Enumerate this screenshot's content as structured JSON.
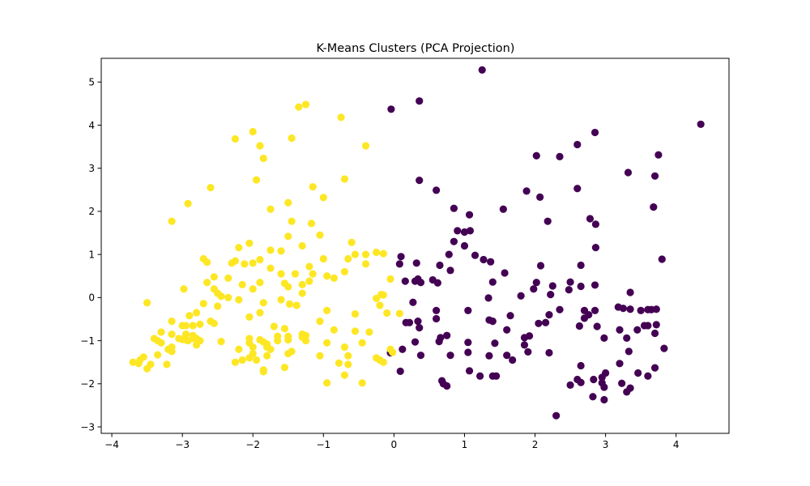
{
  "chart_data": {
    "type": "scatter",
    "title": "K-Means Clusters (PCA Projection)",
    "xlabel": "",
    "ylabel": "",
    "xlim": [
      -4.15,
      4.75
    ],
    "ylim": [
      -3.15,
      5.55
    ],
    "xticks": [
      -4,
      -3,
      -2,
      -1,
      0,
      1,
      2,
      3,
      4
    ],
    "yticks": [
      -3,
      -2,
      -1,
      0,
      1,
      2,
      3,
      4,
      5
    ],
    "grid": false,
    "legend": "none",
    "series": [
      {
        "color": "#440154",
        "points": [
          [
            1.25,
            5.28
          ],
          [
            4.35,
            4.02
          ],
          [
            0.36,
            4.56
          ],
          [
            -0.04,
            4.37
          ],
          [
            2.85,
            3.83
          ],
          [
            2.6,
            3.55
          ],
          [
            3.75,
            3.31
          ],
          [
            2.02,
            3.29
          ],
          [
            2.35,
            3.27
          ],
          [
            3.32,
            2.9
          ],
          [
            3.7,
            2.82
          ],
          [
            0.36,
            2.72
          ],
          [
            2.6,
            2.53
          ],
          [
            0.6,
            2.49
          ],
          [
            1.88,
            2.47
          ],
          [
            2.07,
            2.33
          ],
          [
            3.68,
            2.1
          ],
          [
            0.85,
            2.07
          ],
          [
            1.55,
            2.05
          ],
          [
            1.07,
            1.92
          ],
          [
            2.78,
            1.83
          ],
          [
            2.18,
            1.77
          ],
          [
            2.86,
            1.7
          ],
          [
            0.9,
            1.55
          ],
          [
            1.08,
            1.55
          ],
          [
            1.0,
            1.52
          ],
          [
            0.85,
            1.3
          ],
          [
            1.0,
            1.2
          ],
          [
            2.86,
            1.16
          ],
          [
            0.78,
            1.0
          ],
          [
            1.15,
            0.98
          ],
          [
            0.1,
            0.95
          ],
          [
            3.8,
            0.89
          ],
          [
            1.27,
            0.88
          ],
          [
            1.37,
            0.83
          ],
          [
            0.32,
            0.8
          ],
          [
            0.08,
            0.78
          ],
          [
            2.08,
            0.74
          ],
          [
            2.65,
            0.75
          ],
          [
            0.65,
            0.75
          ],
          [
            0.8,
            0.63
          ],
          [
            1.57,
            0.57
          ],
          [
            0.34,
            0.43
          ],
          [
            0.55,
            0.41
          ],
          [
            0.3,
            0.38
          ],
          [
            0.16,
            0.38
          ],
          [
            1.4,
            0.36
          ],
          [
            0.38,
            0.35
          ],
          [
            2.02,
            0.35
          ],
          [
            0.62,
            0.34
          ],
          [
            2.5,
            0.36
          ],
          [
            2.85,
            0.29
          ],
          [
            2.65,
            0.26
          ],
          [
            2.25,
            0.27
          ],
          [
            1.98,
            0.2
          ],
          [
            2.48,
            0.18
          ],
          [
            3.35,
            0.12
          ],
          [
            1.05,
            -0.3
          ],
          [
            0.6,
            -0.3
          ],
          [
            1.34,
            -0.01
          ],
          [
            2.22,
            0.07
          ],
          [
            1.8,
            0.04
          ],
          [
            0.27,
            -0.11
          ],
          [
            2.7,
            -0.3
          ],
          [
            2.85,
            -0.3
          ],
          [
            2.35,
            -0.28
          ],
          [
            3.18,
            -0.22
          ],
          [
            3.25,
            -0.25
          ],
          [
            3.35,
            -0.27
          ],
          [
            3.5,
            -0.3
          ],
          [
            3.6,
            -0.28
          ],
          [
            3.65,
            -0.28
          ],
          [
            3.72,
            -0.27
          ],
          [
            1.65,
            -0.42
          ],
          [
            2.2,
            -0.4
          ],
          [
            0.6,
            -0.49
          ],
          [
            2.76,
            -0.4
          ],
          [
            0.34,
            -0.55
          ],
          [
            0.22,
            -0.58
          ],
          [
            0.17,
            -0.58
          ],
          [
            1.35,
            -0.52
          ],
          [
            1.4,
            -0.55
          ],
          [
            2.7,
            -0.48
          ],
          [
            2.63,
            -0.66
          ],
          [
            3.6,
            -0.65
          ],
          [
            3.55,
            -0.65
          ],
          [
            3.72,
            -0.63
          ],
          [
            2.05,
            -0.6
          ],
          [
            2.15,
            -0.58
          ],
          [
            0.36,
            -0.7
          ],
          [
            1.6,
            -0.75
          ],
          [
            2.88,
            -0.67
          ],
          [
            3.2,
            -0.75
          ],
          [
            3.45,
            -0.75
          ],
          [
            3.7,
            -0.83
          ],
          [
            0.66,
            -0.93
          ],
          [
            0.75,
            -0.88
          ],
          [
            1.85,
            -0.93
          ],
          [
            1.92,
            -0.89
          ],
          [
            2.98,
            -0.94
          ],
          [
            3.3,
            -0.94
          ],
          [
            1.43,
            -1.06
          ],
          [
            1.05,
            -1.04
          ],
          [
            0.3,
            -1.03
          ],
          [
            0.64,
            -1.02
          ],
          [
            3.83,
            -1.18
          ],
          [
            -0.05,
            -1.28
          ],
          [
            0.12,
            -1.2
          ],
          [
            0.38,
            -1.34
          ],
          [
            0.8,
            -1.34
          ],
          [
            1.05,
            -1.27
          ],
          [
            1.9,
            -1.26
          ],
          [
            2.2,
            -1.28
          ],
          [
            1.6,
            -1.34
          ],
          [
            1.68,
            -1.45
          ],
          [
            3.33,
            -1.25
          ],
          [
            2.65,
            -1.58
          ],
          [
            3.2,
            -1.53
          ],
          [
            3.7,
            -1.63
          ],
          [
            0.09,
            -1.71
          ],
          [
            1.07,
            -1.7
          ],
          [
            1.22,
            -1.82
          ],
          [
            1.4,
            -1.82
          ],
          [
            1.45,
            -1.82
          ],
          [
            3.46,
            -1.75
          ],
          [
            3.6,
            -1.82
          ],
          [
            2.6,
            -1.9
          ],
          [
            2.5,
            -2.03
          ],
          [
            2.65,
            -1.97
          ],
          [
            2.83,
            -1.9
          ],
          [
            0.68,
            -1.93
          ],
          [
            0.7,
            -2.0
          ],
          [
            0.75,
            -2.05
          ],
          [
            3.23,
            -1.99
          ],
          [
            2.95,
            -1.98
          ],
          [
            3.35,
            -2.1
          ],
          [
            3.3,
            -2.19
          ],
          [
            2.98,
            -2.08
          ],
          [
            2.82,
            -2.3
          ],
          [
            2.98,
            -2.37
          ],
          [
            2.3,
            -2.74
          ],
          [
            1.35,
            -1.35
          ],
          [
            1.85,
            -1.1
          ],
          [
            2.95,
            -1.85
          ],
          [
            3.0,
            -1.75
          ]
        ]
      },
      {
        "color": "#fde725",
        "points": [
          [
            -1.25,
            4.48
          ],
          [
            -1.35,
            4.42
          ],
          [
            -0.75,
            4.18
          ],
          [
            -2.0,
            3.85
          ],
          [
            -2.25,
            3.68
          ],
          [
            -1.45,
            3.7
          ],
          [
            -1.9,
            3.52
          ],
          [
            -0.4,
            3.52
          ],
          [
            -1.85,
            3.23
          ],
          [
            -1.95,
            2.73
          ],
          [
            -0.7,
            2.75
          ],
          [
            -2.6,
            2.55
          ],
          [
            -1.15,
            2.57
          ],
          [
            -1.5,
            2.2
          ],
          [
            -2.92,
            2.18
          ],
          [
            -1.0,
            2.32
          ],
          [
            -1.75,
            2.05
          ],
          [
            -3.15,
            1.77
          ],
          [
            -1.45,
            1.77
          ],
          [
            -1.17,
            1.72
          ],
          [
            -1.05,
            1.45
          ],
          [
            -1.5,
            1.42
          ],
          [
            -0.6,
            1.28
          ],
          [
            -2.05,
            1.26
          ],
          [
            -2.2,
            1.16
          ],
          [
            -1.3,
            1.2
          ],
          [
            -1.75,
            1.1
          ],
          [
            -1.6,
            1.08
          ],
          [
            -0.55,
            1.0
          ],
          [
            -0.4,
            1.0
          ],
          [
            -0.25,
            1.05
          ],
          [
            -0.15,
            1.02
          ],
          [
            -2.7,
            0.9
          ],
          [
            -2.65,
            0.82
          ],
          [
            -2.3,
            0.8
          ],
          [
            -2.25,
            0.85
          ],
          [
            -1.9,
            0.88
          ],
          [
            -2.12,
            0.78
          ],
          [
            -2.0,
            0.8
          ],
          [
            -1.0,
            0.9
          ],
          [
            -0.65,
            0.9
          ],
          [
            -0.4,
            0.78
          ],
          [
            -1.2,
            0.72
          ],
          [
            -1.75,
            0.68
          ],
          [
            -1.6,
            0.55
          ],
          [
            -1.4,
            0.55
          ],
          [
            -1.15,
            0.55
          ],
          [
            -0.95,
            0.5
          ],
          [
            -2.35,
            0.45
          ],
          [
            -0.85,
            0.45
          ],
          [
            -0.7,
            0.6
          ],
          [
            -2.55,
            0.48
          ],
          [
            -2.65,
            0.35
          ],
          [
            -2.15,
            0.3
          ],
          [
            -1.9,
            0.35
          ],
          [
            -1.55,
            0.33
          ],
          [
            -1.5,
            0.25
          ],
          [
            -1.3,
            0.3
          ],
          [
            -1.2,
            0.38
          ],
          [
            -0.05,
            0.43
          ],
          [
            -2.98,
            0.2
          ],
          [
            -2.55,
            0.2
          ],
          [
            -2.5,
            0.1
          ],
          [
            -2.0,
            0.2
          ],
          [
            -1.3,
            0.1
          ],
          [
            -2.45,
            0.03
          ],
          [
            -2.35,
            0.0
          ],
          [
            -2.2,
            -0.05
          ],
          [
            -1.6,
            -0.05
          ],
          [
            -0.18,
            0.07
          ],
          [
            -0.15,
            0.06
          ],
          [
            -0.25,
            -0.02
          ],
          [
            -1.48,
            -0.15
          ],
          [
            -1.38,
            -0.18
          ],
          [
            -1.85,
            -0.12
          ],
          [
            -2.7,
            -0.14
          ],
          [
            -2.8,
            -0.35
          ],
          [
            -2.5,
            -0.2
          ],
          [
            -2.9,
            -0.42
          ],
          [
            -3.15,
            -0.55
          ],
          [
            -3.5,
            -0.12
          ],
          [
            -1.9,
            -0.35
          ],
          [
            -0.2,
            -0.18
          ],
          [
            -0.95,
            -0.3
          ],
          [
            -0.55,
            -0.38
          ],
          [
            -0.1,
            -0.36
          ],
          [
            -2.05,
            -0.45
          ],
          [
            -2.6,
            -0.55
          ],
          [
            -2.55,
            -0.6
          ],
          [
            -1.05,
            -0.55
          ],
          [
            -2.95,
            -0.65
          ],
          [
            -3.0,
            -0.65
          ],
          [
            -2.85,
            -0.65
          ],
          [
            -2.75,
            -0.62
          ],
          [
            -1.7,
            -0.67
          ],
          [
            -1.55,
            -0.72
          ],
          [
            -3.3,
            -0.8
          ],
          [
            -3.15,
            -0.85
          ],
          [
            -2.95,
            -0.85
          ],
          [
            -2.85,
            -0.88
          ],
          [
            -1.3,
            -0.85
          ],
          [
            -1.25,
            -0.88
          ],
          [
            -0.85,
            -0.75
          ],
          [
            -0.55,
            -0.78
          ],
          [
            -0.35,
            -0.8
          ],
          [
            -1.65,
            -0.9
          ],
          [
            -1.5,
            -0.9
          ],
          [
            -1.3,
            -0.92
          ],
          [
            -2.05,
            -0.95
          ],
          [
            -3.05,
            -0.95
          ],
          [
            -3.0,
            -0.97
          ],
          [
            -2.85,
            -0.95
          ],
          [
            -2.92,
            -1.0
          ],
          [
            -2.95,
            -0.98
          ],
          [
            -3.4,
            -0.95
          ],
          [
            -3.35,
            -1.0
          ],
          [
            -3.3,
            -1.05
          ],
          [
            -2.8,
            -0.95
          ],
          [
            -2.75,
            -1.0
          ],
          [
            -2.45,
            -1.02
          ],
          [
            -1.9,
            -0.98
          ],
          [
            -1.85,
            -1.03
          ],
          [
            -1.8,
            -1.08
          ],
          [
            -1.65,
            -1.0
          ],
          [
            -1.5,
            -0.98
          ],
          [
            -2.05,
            -1.05
          ],
          [
            -1.25,
            -1.0
          ],
          [
            -0.95,
            -1.05
          ],
          [
            -0.45,
            -1.05
          ],
          [
            -2.8,
            -1.1
          ],
          [
            -3.15,
            -1.15
          ],
          [
            -3.2,
            -1.2
          ],
          [
            -3.15,
            -1.25
          ],
          [
            -2.2,
            -1.2
          ],
          [
            -2.0,
            -1.15
          ],
          [
            -1.8,
            -1.15
          ],
          [
            -1.75,
            -1.2
          ],
          [
            -0.7,
            -1.15
          ],
          [
            -0.05,
            -1.2
          ],
          [
            -0.02,
            -1.27
          ],
          [
            -1.45,
            -1.25
          ],
          [
            -1.5,
            -1.3
          ],
          [
            -3.35,
            -1.33
          ],
          [
            -2.0,
            -1.3
          ],
          [
            -1.8,
            -1.35
          ],
          [
            -1.05,
            -1.35
          ],
          [
            -0.65,
            -1.35
          ],
          [
            -2.05,
            -1.4
          ],
          [
            -3.55,
            -1.38
          ],
          [
            -3.6,
            -1.45
          ],
          [
            -3.7,
            -1.5
          ],
          [
            -3.62,
            -1.53
          ],
          [
            -3.45,
            -1.55
          ],
          [
            -3.5,
            -1.65
          ],
          [
            -3.22,
            -1.55
          ],
          [
            -2.25,
            -1.5
          ],
          [
            -2.15,
            -1.45
          ],
          [
            -1.95,
            -1.45
          ],
          [
            -0.65,
            -1.55
          ],
          [
            -0.25,
            -1.4
          ],
          [
            -0.2,
            -1.45
          ],
          [
            -0.15,
            -1.5
          ],
          [
            -1.85,
            -1.68
          ],
          [
            -1.85,
            -1.72
          ],
          [
            -1.55,
            -1.62
          ],
          [
            -0.7,
            -1.8
          ],
          [
            -0.95,
            -1.98
          ],
          [
            -0.45,
            -1.98
          ],
          [
            0.08,
            -0.37
          ],
          [
            -0.78,
            -1.52
          ]
        ]
      }
    ]
  }
}
